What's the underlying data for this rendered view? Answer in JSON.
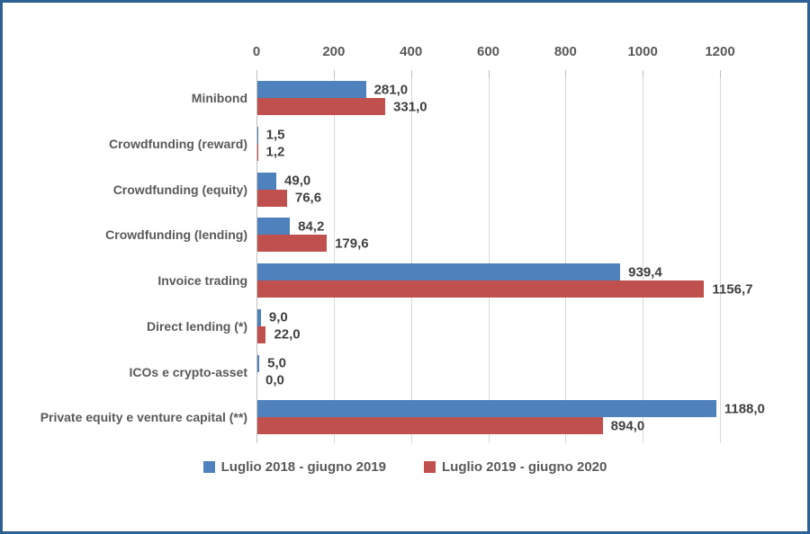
{
  "chart_data": {
    "type": "bar",
    "orientation": "horizontal",
    "title": "",
    "xlabel": "",
    "ylabel": "",
    "categories": [
      "Minibond",
      "Crowdfunding (reward)",
      "Crowdfunding (equity)",
      "Crowdfunding (lending)",
      "Invoice trading",
      "Direct lending (*)",
      "ICOs e crypto-asset",
      "Private equity e venture capital (**)"
    ],
    "series": [
      {
        "name": "Luglio 2018 - giugno 2019",
        "color": "#4F81BD",
        "values": [
          281.0,
          1.5,
          49.0,
          84.2,
          939.4,
          9.0,
          5.0,
          1188.0
        ]
      },
      {
        "name": "Luglio 2019 - giugno 2020",
        "color": "#C0504D",
        "values": [
          331.0,
          1.2,
          76.6,
          179.6,
          1156.7,
          22.0,
          0.0,
          894.0
        ]
      }
    ],
    "value_labels": {
      "decimal_separator": ",",
      "decimals": 1
    },
    "x_ticks": [
      0,
      200,
      400,
      600,
      800,
      1000,
      1200
    ],
    "xlim": [
      0,
      1200
    ],
    "axis_position": "top",
    "grid": true,
    "legend_position": "bottom"
  },
  "colors": {
    "series_blue": "#4F81BD",
    "series_red": "#C0504D",
    "gridline": "#D9D9D9",
    "axis_line": "#BFBFBF",
    "axis_text": "#595959",
    "category_text": "#595959",
    "value_text": "#3F3F3F",
    "legend_text": "#595959",
    "frame_border": "#2E6093",
    "background": "#FFFFFF"
  }
}
